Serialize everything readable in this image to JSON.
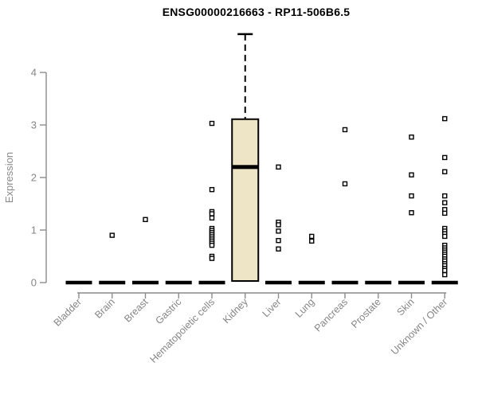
{
  "page": {
    "background": "#ffffff"
  },
  "chart_data": {
    "type": "boxplot",
    "title": "ENSG00000216663 - RP11-506B6.5",
    "ylabel": "Expression",
    "xlabel": "",
    "ylim": [
      0,
      4.9
    ],
    "yticks": [
      0,
      1,
      2,
      3,
      4
    ],
    "grid": false,
    "legend": "none",
    "categories": [
      "Bladder",
      "Brain",
      "Breast",
      "Gastric",
      "Hematopoietic cells",
      "Kidney",
      "Liver",
      "Lung",
      "Pancreas",
      "Prostate",
      "Skin",
      "Unknown / Other"
    ],
    "groups": [
      {
        "category": "Bladder",
        "q1": 0,
        "median": 0,
        "q3": 0,
        "outliers": []
      },
      {
        "category": "Brain",
        "q1": 0,
        "median": 0,
        "q3": 0,
        "outliers": [
          0.9
        ]
      },
      {
        "category": "Breast",
        "q1": 0,
        "median": 0,
        "q3": 0,
        "outliers": [
          1.2
        ]
      },
      {
        "category": "Gastric",
        "q1": 0,
        "median": 0,
        "q3": 0,
        "outliers": []
      },
      {
        "category": "Hematopoietic cells",
        "q1": 0,
        "median": 0,
        "q3": 0,
        "outliers": [
          3.03,
          1.77,
          1.35,
          1.31,
          1.23,
          1.03,
          0.99,
          0.95,
          0.91,
          0.87,
          0.83,
          0.79,
          0.75,
          0.71,
          0.5,
          0.46
        ]
      },
      {
        "category": "Kidney",
        "q1": 0.03,
        "median": 2.2,
        "q3": 3.11,
        "whisker_high": 4.73,
        "outliers": []
      },
      {
        "category": "Liver",
        "q1": 0,
        "median": 0,
        "q3": 0,
        "outliers": [
          2.2,
          1.15,
          1.1,
          0.98,
          0.8,
          0.64
        ]
      },
      {
        "category": "Lung",
        "q1": 0,
        "median": 0,
        "q3": 0,
        "outliers": [
          0.88,
          0.79
        ]
      },
      {
        "category": "Pancreas",
        "q1": 0,
        "median": 0,
        "q3": 0,
        "outliers": [
          2.91,
          1.88
        ]
      },
      {
        "category": "Prostate",
        "q1": 0,
        "median": 0,
        "q3": 0,
        "outliers": []
      },
      {
        "category": "Skin",
        "q1": 0,
        "median": 0,
        "q3": 0,
        "outliers": [
          2.77,
          2.05,
          1.65,
          1.33
        ]
      },
      {
        "category": "Unknown / Other",
        "q1": 0,
        "median": 0,
        "q3": 0,
        "outliers": [
          3.12,
          2.38,
          2.11,
          1.65,
          1.52,
          1.39,
          1.32,
          1.03,
          0.98,
          0.93,
          0.88,
          0.71,
          0.66,
          0.62,
          0.58,
          0.54,
          0.5,
          0.45,
          0.41,
          0.36,
          0.32,
          0.27,
          0.23,
          0.15
        ]
      }
    ],
    "colors": {
      "box_fill": "#ede5c6",
      "box_stroke": "#000000",
      "median": "#000000",
      "outlier_stroke": "#000000",
      "outlier_fill": "#ffffff",
      "axis": "#8c8c8c",
      "tick_label": "#858585",
      "title": "#000000"
    }
  }
}
